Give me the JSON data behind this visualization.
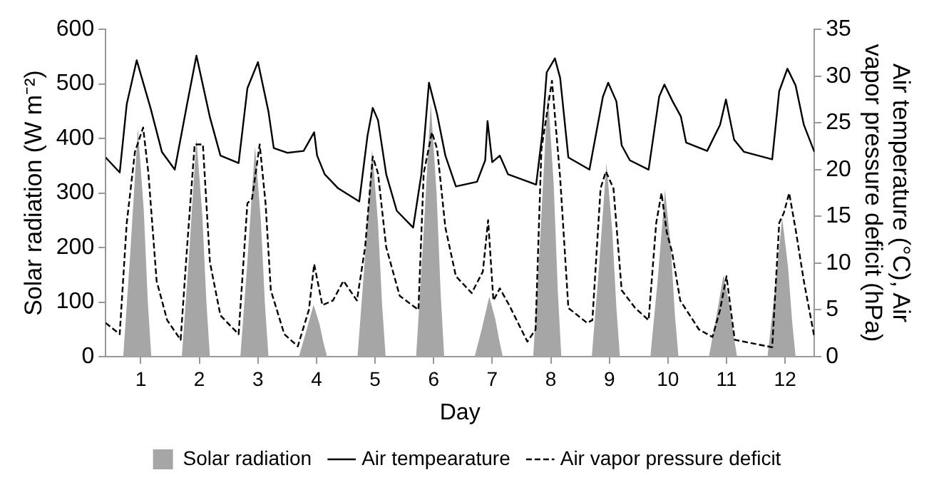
{
  "chart_data": {
    "type": "line",
    "xlabel": "Day",
    "ylabel": "Solar radiation (W m⁻²)",
    "y2label": "Air temperature (°C), Air vapor pressure deficit (hPa)",
    "xlim": [
      0.4,
      12.5
    ],
    "xticks": [
      1,
      2,
      3,
      4,
      5,
      6,
      7,
      8,
      9,
      10,
      11,
      12
    ],
    "ylim": [
      0,
      600
    ],
    "yticks": [
      0,
      100,
      200,
      300,
      400,
      500,
      600
    ],
    "y2lim": [
      0,
      35
    ],
    "y2ticks": [
      0,
      5,
      10,
      15,
      20,
      25,
      30,
      35
    ],
    "grid": false,
    "legend": "bottom",
    "marker": "none",
    "series": [
      {
        "name": "Solar radiation",
        "type": "area",
        "color": "#a6a6a6",
        "x": [
          0.7,
          0.82,
          0.95,
          1.05,
          1.12,
          1.18,
          1.7,
          1.82,
          1.95,
          2.05,
          2.12,
          2.18,
          2.7,
          2.82,
          2.95,
          3.05,
          3.12,
          3.18,
          3.7,
          3.82,
          3.95,
          4.05,
          4.12,
          4.18,
          4.7,
          4.82,
          4.95,
          5.05,
          5.12,
          5.18,
          5.7,
          5.82,
          5.95,
          6.05,
          6.12,
          6.18,
          6.7,
          6.82,
          6.95,
          7.05,
          7.12,
          7.18,
          7.7,
          7.82,
          7.95,
          8.05,
          8.12,
          8.18,
          8.7,
          8.82,
          8.95,
          9.05,
          9.12,
          9.18,
          9.7,
          9.82,
          9.95,
          10.05,
          10.12,
          10.18,
          10.7,
          10.82,
          10.95,
          11.05,
          11.12,
          11.18,
          11.7,
          11.82,
          11.95,
          12.05,
          12.12,
          12.18
        ],
        "values": [
          0,
          190,
          418,
          270,
          100,
          0,
          0,
          180,
          400,
          260,
          100,
          0,
          0,
          175,
          385,
          250,
          95,
          0,
          0,
          45,
          95,
          60,
          25,
          0,
          0,
          170,
          380,
          245,
          95,
          0,
          0,
          210,
          465,
          300,
          115,
          0,
          0,
          50,
          110,
          70,
          30,
          0,
          0,
          220,
          485,
          315,
          120,
          0,
          0,
          160,
          355,
          230,
          90,
          0,
          0,
          135,
          305,
          200,
          75,
          0,
          0,
          70,
          150,
          95,
          40,
          0,
          0,
          115,
          255,
          165,
          65,
          0
        ]
      },
      {
        "name": "Air tempearature",
        "axis": "y2",
        "color": "#000000",
        "line_style": "solid",
        "x": [
          0.4,
          0.64,
          0.76,
          0.93,
          1.17,
          1.36,
          1.58,
          1.79,
          1.95,
          2.18,
          2.36,
          2.67,
          2.82,
          3.0,
          3.18,
          3.27,
          3.5,
          3.78,
          3.96,
          4.01,
          4.14,
          4.37,
          4.73,
          4.87,
          4.96,
          5.05,
          5.19,
          5.37,
          5.65,
          5.79,
          5.92,
          6.06,
          6.2,
          6.38,
          6.74,
          6.88,
          6.92,
          7.0,
          7.13,
          7.27,
          7.75,
          7.85,
          7.93,
          8.07,
          8.16,
          8.3,
          8.66,
          8.89,
          8.98,
          9.12,
          9.21,
          9.35,
          9.67,
          9.85,
          9.94,
          10.08,
          10.22,
          10.31,
          10.67,
          10.89,
          10.99,
          11.13,
          11.3,
          11.78,
          11.9,
          12.04,
          12.18,
          12.32,
          12.5
        ],
        "values": [
          21.3,
          19.7,
          27,
          31.7,
          26.5,
          21.9,
          20,
          27,
          32.2,
          25.6,
          21.5,
          20.7,
          28.7,
          31.5,
          26.2,
          22.3,
          21.8,
          22,
          24,
          21.5,
          19.5,
          18,
          16.6,
          23.6,
          26.6,
          25.3,
          19.5,
          15.6,
          13.8,
          19.5,
          29.3,
          25.9,
          21.5,
          18.2,
          18.7,
          21,
          25.2,
          20.8,
          21.5,
          19.5,
          18.4,
          23.6,
          30.4,
          31.9,
          29.8,
          21.3,
          20,
          27.8,
          29.3,
          27.3,
          22.6,
          21,
          20,
          27.8,
          29.1,
          27.3,
          25.7,
          22.9,
          22,
          24.8,
          27.5,
          23.2,
          21.9,
          21.1,
          28.4,
          30.8,
          29,
          24.8,
          21.9
        ]
      },
      {
        "name": "Air vapor pressure deficit",
        "axis": "y2",
        "color": "#000000",
        "line_style": "dashed",
        "x": [
          0.4,
          0.64,
          0.76,
          0.9,
          1.04,
          1.13,
          1.27,
          1.45,
          1.68,
          1.79,
          1.92,
          2.06,
          2.18,
          2.36,
          2.67,
          2.82,
          2.9,
          3.03,
          3.13,
          3.22,
          3.45,
          3.68,
          3.87,
          3.96,
          4.1,
          4.28,
          4.46,
          4.69,
          4.83,
          4.96,
          5.05,
          5.19,
          5.42,
          5.74,
          5.83,
          5.97,
          6.06,
          6.2,
          6.38,
          6.65,
          6.84,
          6.93,
          7.02,
          7.13,
          7.29,
          7.6,
          7.74,
          7.84,
          8.02,
          8.16,
          8.3,
          8.62,
          8.71,
          8.85,
          8.94,
          9.07,
          9.21,
          9.44,
          9.67,
          9.8,
          9.89,
          9.98,
          10.07,
          10.21,
          10.53,
          10.76,
          10.89,
          11.0,
          11.14,
          11.78,
          11.9,
          11.98,
          12.07,
          12.18,
          12.32,
          12.5
        ],
        "values": [
          3.6,
          2.4,
          14.3,
          21.9,
          24.5,
          19.6,
          8.1,
          3.9,
          1.8,
          11.7,
          22.7,
          22.7,
          10.1,
          4.4,
          2.4,
          16.4,
          16.9,
          22.7,
          16.4,
          7.1,
          2.4,
          1.1,
          5,
          9.9,
          5.5,
          6,
          8.1,
          6,
          11.7,
          21.4,
          19.6,
          11.7,
          6.5,
          5,
          19.6,
          24,
          22.2,
          13.8,
          8.6,
          6.8,
          9.1,
          14.6,
          6,
          7.3,
          5.5,
          1.6,
          2.9,
          22.2,
          29.5,
          19.1,
          5.2,
          3.6,
          3.9,
          18,
          19.8,
          18,
          7.1,
          5.2,
          3.9,
          14.3,
          17.5,
          13.3,
          11.2,
          6,
          2.9,
          2.1,
          5,
          8.6,
          1.8,
          1,
          14.3,
          15.4,
          17.5,
          13.6,
          8.1,
          2.1
        ]
      }
    ]
  }
}
